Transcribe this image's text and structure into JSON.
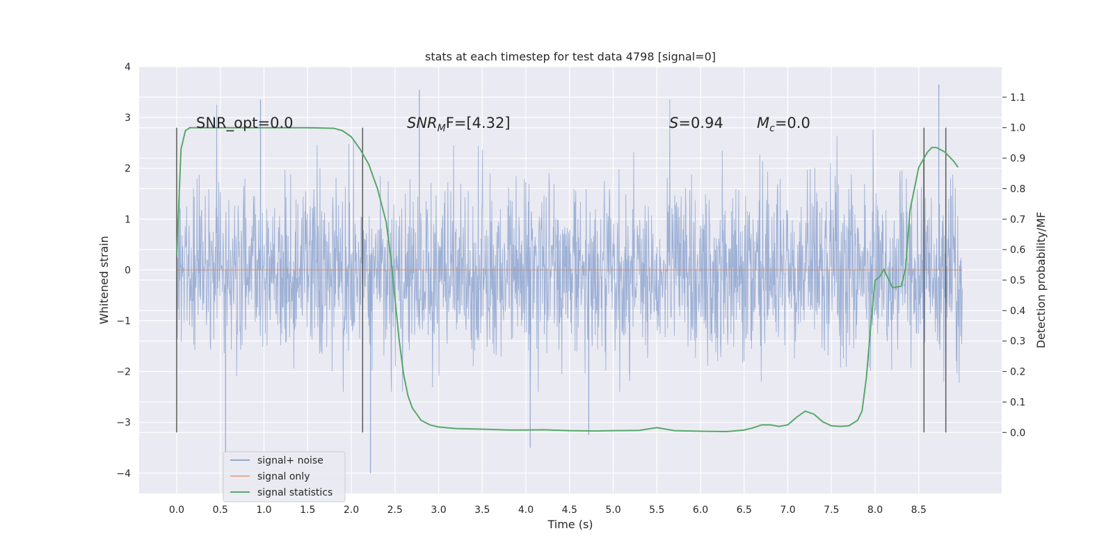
{
  "chart_data": {
    "type": "line",
    "title": "stats at each timestep for test data 4798 [signal=0]",
    "xlabel": "Time (s)",
    "ylabel": "Whitened strain",
    "ylabel_right": "Detection probability/MF",
    "xlim": [
      -0.43,
      9.45
    ],
    "ylim": [
      -4.4,
      4.0
    ],
    "ylim_right": [
      -0.2,
      1.2
    ],
    "x_ticks": [
      "0.0",
      "0.5",
      "1.0",
      "1.5",
      "2.0",
      "2.5",
      "3.0",
      "3.5",
      "4.0",
      "4.5",
      "5.0",
      "5.5",
      "6.0",
      "6.5",
      "7.0",
      "7.5",
      "8.0",
      "8.5"
    ],
    "y_ticks": [
      "4",
      "3",
      "2",
      "1",
      "0",
      "−1",
      "−2",
      "−3",
      "−4"
    ],
    "y_ticks_right": [
      "1.1",
      "1.0",
      "0.9",
      "0.8",
      "0.7",
      "0.6",
      "0.5",
      "0.4",
      "0.3",
      "0.2",
      "0.1",
      "0.0"
    ],
    "grid": true,
    "legend_placement": "lower-left",
    "annotations": {
      "snr_opt": "SNR_opt=0.0",
      "snr_mf_main": "SNR",
      "snr_mf_sub": "M",
      "snr_mf_tail": "F=[4.32]",
      "s_sym": "S",
      "s_val": "=0.94",
      "mc_sym": "M",
      "mc_sub": "c",
      "mc_val": "=0.0"
    },
    "vertical_lines_x": [
      0.0,
      2.13,
      8.56,
      8.81
    ],
    "vertical_lines_y": [
      -3.2,
      2.8
    ],
    "series": [
      {
        "name": "signal+ noise",
        "color": "#8fa6d0",
        "x_range": [
          0.0,
          9.0
        ],
        "envelope": [
          -2.4,
          3.6
        ],
        "extremes": [
          [
            0.96,
            3.35
          ],
          [
            2.78,
            3.55
          ],
          [
            8.73,
            3.65
          ],
          [
            2.22,
            -4.0
          ],
          [
            0.56,
            -3.6
          ],
          [
            4.05,
            -3.5
          ],
          [
            4.72,
            -3.25
          ]
        ]
      },
      {
        "name": "signal only",
        "color": "#dd8452",
        "x": [
          0.0,
          9.0
        ],
        "y": [
          0.0,
          0.0
        ]
      },
      {
        "name": "signal statistics",
        "color": "#55a868",
        "axis": "right",
        "x": [
          0.0,
          0.05,
          0.1,
          0.15,
          0.3,
          0.5,
          1.0,
          1.5,
          1.8,
          1.9,
          2.0,
          2.1,
          2.2,
          2.3,
          2.4,
          2.45,
          2.5,
          2.55,
          2.6,
          2.65,
          2.7,
          2.8,
          2.9,
          3.0,
          3.2,
          3.5,
          3.8,
          4.0,
          4.2,
          4.5,
          4.8,
          5.0,
          5.3,
          5.5,
          5.7,
          6.0,
          6.3,
          6.5,
          6.6,
          6.7,
          6.8,
          6.9,
          7.0,
          7.1,
          7.2,
          7.3,
          7.4,
          7.5,
          7.6,
          7.7,
          7.8,
          7.85,
          7.9,
          7.95,
          8.0,
          8.05,
          8.1,
          8.2,
          8.3,
          8.35,
          8.4,
          8.5,
          8.6,
          8.65,
          8.7,
          8.8,
          8.9,
          8.95
        ],
        "y": [
          0.58,
          0.93,
          0.99,
          1.0,
          1.0,
          1.0,
          1.0,
          1.0,
          0.998,
          0.99,
          0.97,
          0.93,
          0.88,
          0.8,
          0.69,
          0.58,
          0.44,
          0.3,
          0.19,
          0.12,
          0.08,
          0.04,
          0.025,
          0.018,
          0.013,
          0.011,
          0.008,
          0.008,
          0.009,
          0.006,
          0.005,
          0.006,
          0.007,
          0.016,
          0.006,
          0.004,
          0.003,
          0.008,
          0.015,
          0.025,
          0.025,
          0.02,
          0.025,
          0.05,
          0.07,
          0.06,
          0.035,
          0.022,
          0.02,
          0.022,
          0.04,
          0.07,
          0.18,
          0.35,
          0.5,
          0.51,
          0.535,
          0.475,
          0.48,
          0.54,
          0.73,
          0.87,
          0.92,
          0.935,
          0.935,
          0.92,
          0.89,
          0.87
        ]
      }
    ]
  }
}
